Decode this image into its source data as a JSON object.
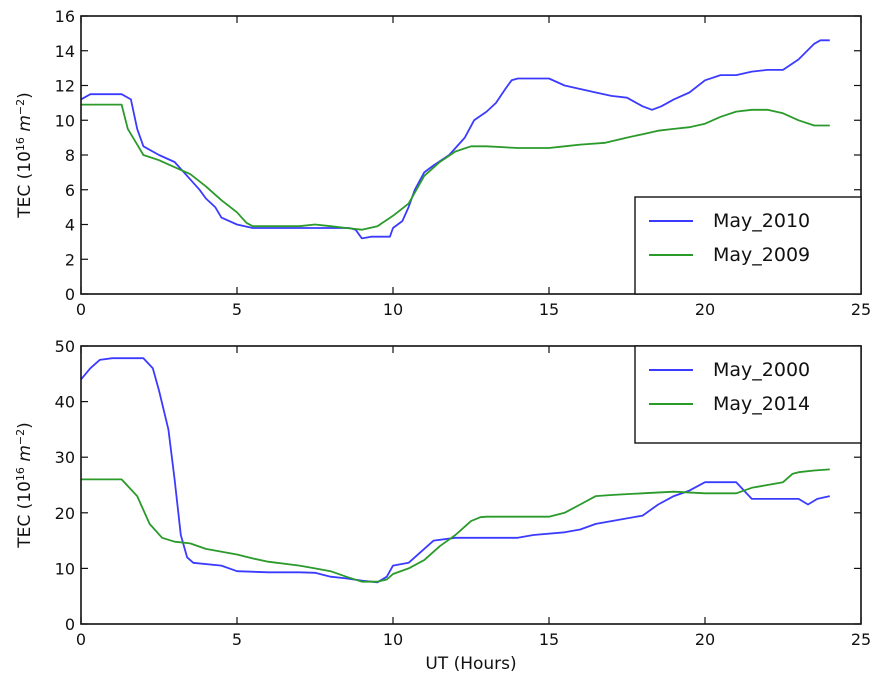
{
  "figure": {
    "xlabel": "UT (Hours)"
  },
  "chart_data": [
    {
      "type": "line",
      "ylabel": "TEC (10^16 m^-2)",
      "ylabel_parts": {
        "prefix": "TEC (10",
        "exp1": "16",
        "unit": " m",
        "exp2": "−2",
        "suffix": ")"
      },
      "xlim": [
        0,
        25
      ],
      "ylim": [
        0,
        16
      ],
      "xticks": [
        0,
        5,
        10,
        15,
        20,
        25
      ],
      "yticks": [
        0,
        2,
        4,
        6,
        8,
        10,
        12,
        14,
        16
      ],
      "grid": false,
      "legend": "lower-right",
      "series": [
        {
          "name": "May_2010",
          "color": "#3b3bff",
          "points": [
            [
              0,
              11.2
            ],
            [
              0.3,
              11.5
            ],
            [
              1.3,
              11.5
            ],
            [
              1.6,
              11.2
            ],
            [
              1.8,
              9.5
            ],
            [
              2.0,
              8.5
            ],
            [
              2.5,
              8.0
            ],
            [
              3.0,
              7.6
            ],
            [
              3.5,
              6.6
            ],
            [
              3.8,
              6.0
            ],
            [
              4.0,
              5.5
            ],
            [
              4.3,
              5.0
            ],
            [
              4.5,
              4.4
            ],
            [
              5.0,
              4.0
            ],
            [
              5.5,
              3.8
            ],
            [
              6.0,
              3.8
            ],
            [
              7.0,
              3.8
            ],
            [
              8.0,
              3.8
            ],
            [
              8.6,
              3.8
            ],
            [
              8.8,
              3.7
            ],
            [
              9.0,
              3.2
            ],
            [
              9.3,
              3.3
            ],
            [
              9.6,
              3.3
            ],
            [
              9.9,
              3.3
            ],
            [
              10.0,
              3.8
            ],
            [
              10.3,
              4.2
            ],
            [
              10.5,
              5.0
            ],
            [
              10.7,
              6.0
            ],
            [
              11.0,
              7.0
            ],
            [
              11.3,
              7.4
            ],
            [
              11.8,
              8.0
            ],
            [
              12.3,
              9.0
            ],
            [
              12.6,
              10.0
            ],
            [
              13.0,
              10.5
            ],
            [
              13.3,
              11.0
            ],
            [
              13.6,
              11.8
            ],
            [
              13.8,
              12.3
            ],
            [
              14.0,
              12.4
            ],
            [
              15.0,
              12.4
            ],
            [
              15.5,
              12.0
            ],
            [
              16.0,
              11.8
            ],
            [
              16.5,
              11.6
            ],
            [
              17.0,
              11.4
            ],
            [
              17.5,
              11.3
            ],
            [
              18.0,
              10.8
            ],
            [
              18.3,
              10.6
            ],
            [
              18.6,
              10.8
            ],
            [
              19.0,
              11.2
            ],
            [
              19.5,
              11.6
            ],
            [
              20.0,
              12.3
            ],
            [
              20.5,
              12.6
            ],
            [
              21.0,
              12.6
            ],
            [
              21.5,
              12.8
            ],
            [
              22.0,
              12.9
            ],
            [
              22.5,
              12.9
            ],
            [
              23.0,
              13.5
            ],
            [
              23.5,
              14.4
            ],
            [
              23.7,
              14.6
            ],
            [
              24.0,
              14.6
            ]
          ]
        },
        {
          "name": "May_2009",
          "color": "#2a9a2a",
          "points": [
            [
              0,
              10.9
            ],
            [
              1.3,
              10.9
            ],
            [
              1.5,
              9.5
            ],
            [
              1.8,
              8.6
            ],
            [
              2.0,
              8.0
            ],
            [
              2.5,
              7.7
            ],
            [
              3.0,
              7.3
            ],
            [
              3.5,
              6.9
            ],
            [
              4.0,
              6.2
            ],
            [
              4.5,
              5.4
            ],
            [
              5.0,
              4.7
            ],
            [
              5.3,
              4.1
            ],
            [
              5.5,
              3.9
            ],
            [
              6.0,
              3.9
            ],
            [
              7.0,
              3.9
            ],
            [
              7.5,
              4.0
            ],
            [
              8.0,
              3.9
            ],
            [
              8.5,
              3.8
            ],
            [
              9.0,
              3.7
            ],
            [
              9.5,
              3.9
            ],
            [
              10.0,
              4.5
            ],
            [
              10.5,
              5.2
            ],
            [
              11.0,
              6.8
            ],
            [
              11.5,
              7.6
            ],
            [
              12.0,
              8.2
            ],
            [
              12.5,
              8.5
            ],
            [
              13.0,
              8.5
            ],
            [
              14.0,
              8.4
            ],
            [
              15.0,
              8.4
            ],
            [
              15.5,
              8.5
            ],
            [
              16.0,
              8.6
            ],
            [
              16.8,
              8.7
            ],
            [
              17.5,
              9.0
            ],
            [
              18.0,
              9.2
            ],
            [
              18.5,
              9.4
            ],
            [
              19.0,
              9.5
            ],
            [
              19.5,
              9.6
            ],
            [
              20.0,
              9.8
            ],
            [
              20.5,
              10.2
            ],
            [
              21.0,
              10.5
            ],
            [
              21.5,
              10.6
            ],
            [
              22.0,
              10.6
            ],
            [
              22.5,
              10.4
            ],
            [
              23.0,
              10.0
            ],
            [
              23.5,
              9.7
            ],
            [
              24.0,
              9.7
            ]
          ]
        }
      ]
    },
    {
      "type": "line",
      "ylabel": "TEC (10^16 m^-2)",
      "ylabel_parts": {
        "prefix": "TEC (10",
        "exp1": "16",
        "unit": " m",
        "exp2": "−2",
        "suffix": ")"
      },
      "xlim": [
        0,
        25
      ],
      "ylim": [
        0,
        50
      ],
      "xticks": [
        0,
        5,
        10,
        15,
        20,
        25
      ],
      "yticks": [
        0,
        10,
        20,
        30,
        40,
        50
      ],
      "grid": false,
      "legend": "top-right",
      "series": [
        {
          "name": "May_2000",
          "color": "#3b3bff",
          "points": [
            [
              0,
              44
            ],
            [
              0.3,
              46
            ],
            [
              0.6,
              47.5
            ],
            [
              1.0,
              47.8
            ],
            [
              2.0,
              47.8
            ],
            [
              2.3,
              46
            ],
            [
              2.5,
              42
            ],
            [
              2.8,
              35
            ],
            [
              3.0,
              26
            ],
            [
              3.2,
              16
            ],
            [
              3.4,
              12
            ],
            [
              3.6,
              11
            ],
            [
              4.5,
              10.5
            ],
            [
              5.0,
              9.5
            ],
            [
              6.0,
              9.3
            ],
            [
              7.0,
              9.3
            ],
            [
              7.5,
              9.2
            ],
            [
              8.0,
              8.5
            ],
            [
              8.5,
              8.2
            ],
            [
              9.0,
              7.8
            ],
            [
              9.5,
              7.5
            ],
            [
              9.8,
              8.5
            ],
            [
              10.0,
              10.5
            ],
            [
              10.5,
              11.0
            ],
            [
              11.0,
              13.5
            ],
            [
              11.3,
              15.0
            ],
            [
              12.0,
              15.5
            ],
            [
              13.0,
              15.5
            ],
            [
              14.0,
              15.5
            ],
            [
              14.5,
              16.0
            ],
            [
              15.5,
              16.5
            ],
            [
              16.0,
              17.0
            ],
            [
              16.5,
              18.0
            ],
            [
              17.0,
              18.5
            ],
            [
              18.0,
              19.5
            ],
            [
              18.5,
              21.5
            ],
            [
              19.0,
              23.0
            ],
            [
              19.5,
              24.0
            ],
            [
              20.0,
              25.5
            ],
            [
              21.0,
              25.5
            ],
            [
              21.5,
              22.5
            ],
            [
              22.0,
              22.5
            ],
            [
              23.0,
              22.5
            ],
            [
              23.3,
              21.5
            ],
            [
              23.6,
              22.5
            ],
            [
              24.0,
              23.0
            ]
          ]
        },
        {
          "name": "May_2014",
          "color": "#2a9a2a",
          "points": [
            [
              0,
              26
            ],
            [
              1.3,
              26
            ],
            [
              1.8,
              23
            ],
            [
              2.2,
              18
            ],
            [
              2.6,
              15.5
            ],
            [
              3.0,
              14.8
            ],
            [
              3.5,
              14.5
            ],
            [
              4.0,
              13.5
            ],
            [
              5.0,
              12.5
            ],
            [
              5.5,
              11.8
            ],
            [
              6.0,
              11.2
            ],
            [
              7.0,
              10.5
            ],
            [
              7.5,
              10.0
            ],
            [
              8.0,
              9.5
            ],
            [
              8.5,
              8.5
            ],
            [
              9.0,
              7.6
            ],
            [
              9.5,
              7.6
            ],
            [
              9.8,
              8.0
            ],
            [
              10.0,
              9.0
            ],
            [
              10.5,
              10.0
            ],
            [
              11.0,
              11.5
            ],
            [
              11.5,
              14.0
            ],
            [
              12.0,
              16.0
            ],
            [
              12.5,
              18.5
            ],
            [
              12.8,
              19.2
            ],
            [
              13.0,
              19.3
            ],
            [
              14.0,
              19.3
            ],
            [
              15.0,
              19.3
            ],
            [
              15.5,
              20.0
            ],
            [
              16.0,
              21.5
            ],
            [
              16.5,
              23.0
            ],
            [
              17.0,
              23.2
            ],
            [
              18.0,
              23.5
            ],
            [
              19.0,
              23.8
            ],
            [
              20.0,
              23.5
            ],
            [
              21.0,
              23.5
            ],
            [
              21.5,
              24.5
            ],
            [
              22.0,
              25.0
            ],
            [
              22.5,
              25.5
            ],
            [
              22.8,
              27.0
            ],
            [
              23.0,
              27.3
            ],
            [
              23.5,
              27.6
            ],
            [
              24.0,
              27.8
            ]
          ]
        }
      ]
    }
  ]
}
